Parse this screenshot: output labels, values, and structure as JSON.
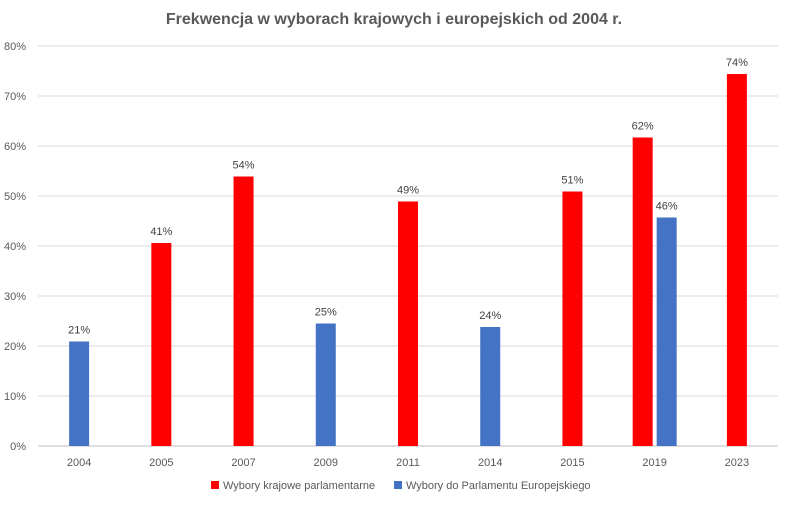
{
  "chart_data": {
    "type": "bar",
    "title": "Frekwencja w wyborach krajowych i europejskich od 2004 r.",
    "xlabel": "",
    "ylabel": "",
    "categories": [
      "2004",
      "2005",
      "2007",
      "2009",
      "2011",
      "2014",
      "2015",
      "2019",
      "2023"
    ],
    "ylim": [
      0,
      80
    ],
    "yticks": [
      0,
      10,
      20,
      30,
      40,
      50,
      60,
      70,
      80
    ],
    "ytick_labels": [
      "0%",
      "10%",
      "20%",
      "30%",
      "40%",
      "50%",
      "60%",
      "70%",
      "80%"
    ],
    "grid": true,
    "legend_position": "bottom",
    "series": [
      {
        "name": "Wybory krajowe parlamentarne",
        "color": "#ff0000",
        "values": [
          null,
          40.6,
          53.9,
          null,
          48.9,
          null,
          50.9,
          61.7,
          74.4
        ],
        "labels": [
          "",
          "41%",
          "54%",
          "",
          "49%",
          "",
          "51%",
          "62%",
          "74%"
        ]
      },
      {
        "name": "Wybory do Parlamentu Europejskiego",
        "color": "#4472c4",
        "values": [
          20.9,
          null,
          null,
          24.5,
          null,
          23.8,
          null,
          45.7,
          null
        ],
        "labels": [
          "21%",
          "",
          "",
          "25%",
          "",
          "24%",
          "",
          "46%",
          ""
        ]
      }
    ]
  }
}
